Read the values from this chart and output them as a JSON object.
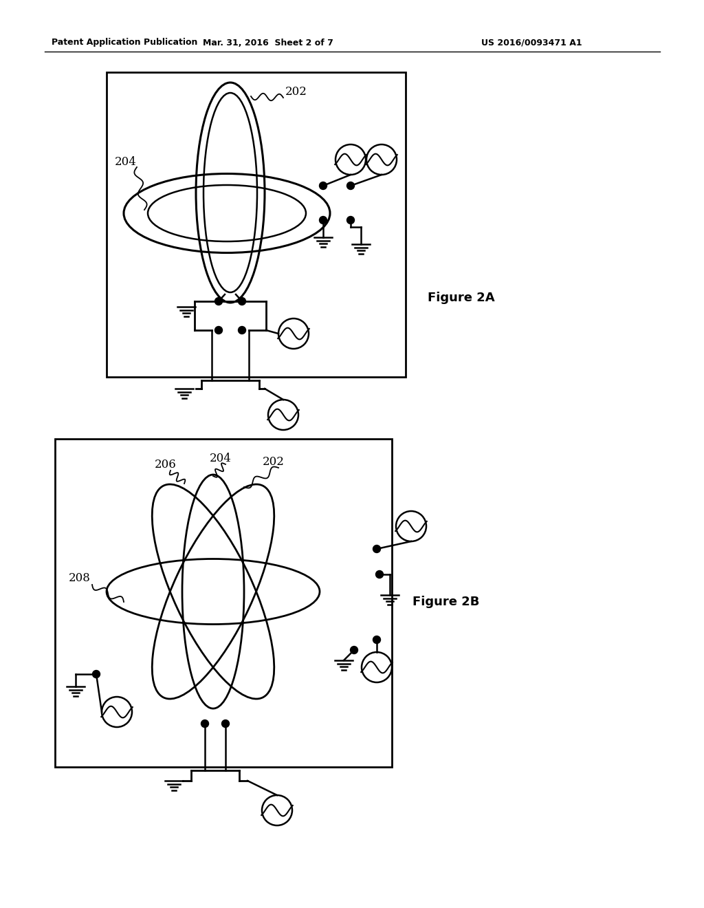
{
  "background_color": "#ffffff",
  "header_left": "Patent Application Publication",
  "header_mid": "Mar. 31, 2016  Sheet 2 of 7",
  "header_right": "US 2016/0093471 A1",
  "fig2a_label": "Figure 2A",
  "fig2b_label": "Figure 2B",
  "label_202": "202",
  "label_204": "204",
  "label_206": "206",
  "label_204b": "204",
  "label_202b": "202",
  "label_208": "208"
}
